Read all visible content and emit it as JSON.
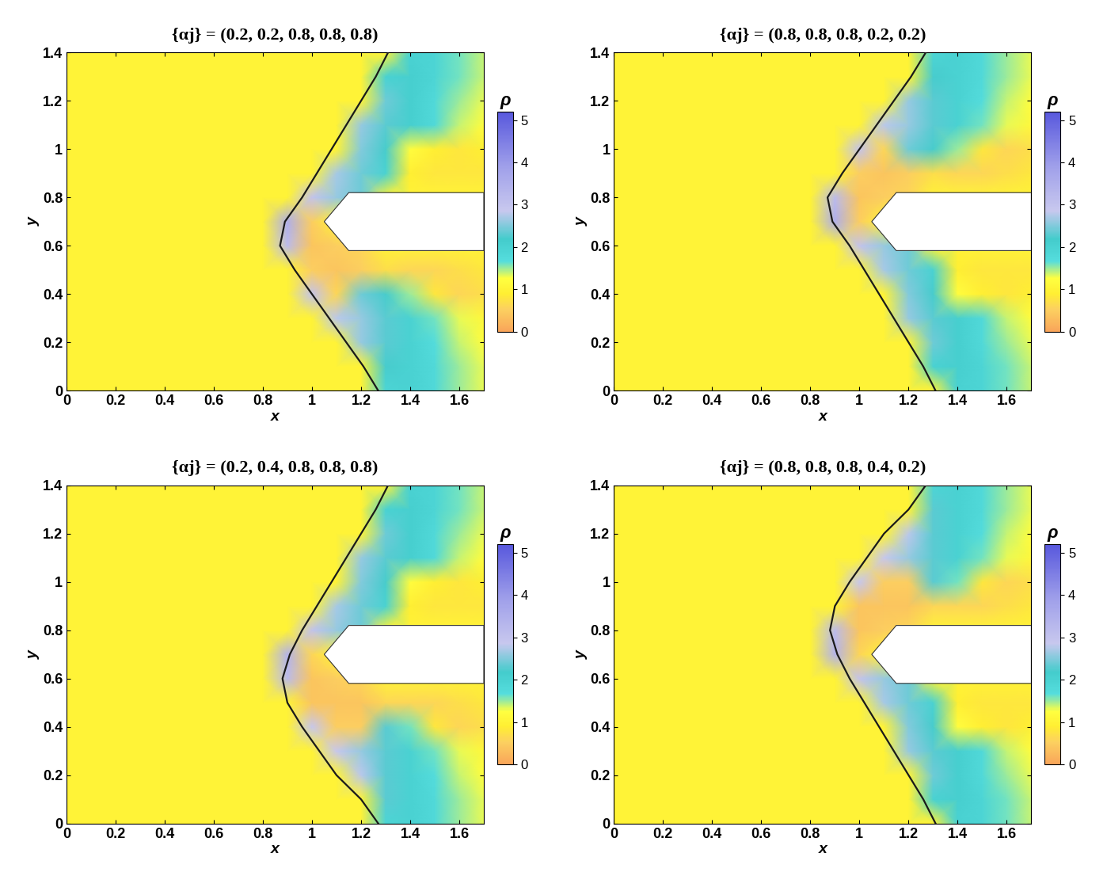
{
  "chart_data": [
    {
      "type": "heatmap",
      "title": "{αj} = (0.2, 0.2, 0.8, 0.8, 0.8)",
      "x_label": "x",
      "y_label": "y",
      "xlim": [
        0,
        1.7
      ],
      "ylim": [
        0,
        1.4
      ],
      "xticks": [
        0,
        0.2,
        0.4,
        0.6,
        0.8,
        1,
        1.2,
        1.4,
        1.6
      ],
      "yticks": [
        0,
        0.2,
        0.4,
        0.6,
        0.8,
        1,
        1.2,
        1.4
      ],
      "x": [
        0,
        0.8,
        0.9,
        1.0,
        1.1,
        1.2,
        1.3,
        1.4,
        1.5,
        1.6,
        1.7
      ],
      "y": [
        0,
        0.1,
        0.2,
        0.3,
        0.4,
        0.5,
        0.6,
        0.7,
        0.8,
        0.9,
        1.0,
        1.1,
        1.2,
        1.3,
        1.4
      ],
      "values": [
        [
          1,
          1,
          1,
          1,
          1,
          1,
          1.9,
          2.0,
          1.8,
          1.5,
          1.3
        ],
        [
          1,
          1,
          1,
          1,
          1,
          1,
          2.2,
          2.0,
          1.8,
          1.5,
          1.3
        ],
        [
          1,
          1,
          1,
          1,
          1,
          2.6,
          2.3,
          2.0,
          1.7,
          1.4,
          1.2
        ],
        [
          1,
          1,
          1,
          1,
          2.8,
          2.6,
          2.3,
          2.0,
          1.6,
          1.3,
          1.1
        ],
        [
          1,
          1,
          1,
          3.0,
          0.6,
          2.4,
          2.2,
          1.5,
          0.8,
          0.6,
          0.7
        ],
        [
          1,
          1,
          1,
          0.5,
          0.4,
          0.5,
          0.7,
          0.6,
          0.6,
          0.7,
          0.8
        ],
        [
          1,
          1,
          3.2,
          0.4,
          0.5,
          0.6,
          1,
          1,
          1,
          1,
          1
        ],
        [
          1,
          1,
          3.5,
          0.5,
          1,
          1,
          1,
          1,
          1,
          1,
          1
        ],
        [
          1,
          1,
          1,
          3.0,
          2.6,
          2.4,
          1,
          1,
          1,
          1,
          1
        ],
        [
          1,
          1,
          1,
          1,
          2.7,
          2.4,
          2.0,
          0.9,
          0.8,
          0.8,
          0.8
        ],
        [
          1,
          1,
          1,
          1,
          1,
          2.5,
          2.2,
          1.2,
          0.9,
          0.8,
          0.9
        ],
        [
          1,
          1,
          1,
          1,
          1,
          2.6,
          2.3,
          2.1,
          1.8,
          1.4,
          1.2
        ],
        [
          1,
          1,
          1,
          1,
          1,
          1,
          2.4,
          2.1,
          1.8,
          1.5,
          1.3
        ],
        [
          1,
          1,
          1,
          1,
          1,
          1,
          2.0,
          2.1,
          1.9,
          1.6,
          1.4
        ],
        [
          1,
          1,
          1,
          1,
          1,
          1,
          1,
          2.0,
          1.9,
          1.6,
          1.4
        ]
      ],
      "shock": {
        "x": [
          1.27,
          1.21,
          1.14,
          1.07,
          1.0,
          0.93,
          0.87,
          0.89,
          0.96,
          1.02,
          1.08,
          1.14,
          1.2,
          1.26,
          1.31
        ],
        "y": [
          0,
          0.1,
          0.2,
          0.3,
          0.4,
          0.5,
          0.6,
          0.7,
          0.8,
          0.9,
          1.0,
          1.1,
          1.2,
          1.3,
          1.4
        ]
      },
      "body": [
        [
          1.7,
          0.58
        ],
        [
          1.15,
          0.58
        ],
        [
          1.05,
          0.7
        ],
        [
          1.15,
          0.82
        ],
        [
          1.7,
          0.82
        ]
      ],
      "colorbar": {
        "label": "ρ",
        "range": [
          0,
          5.2
        ],
        "ticks": [
          0,
          1,
          2,
          3,
          4,
          5
        ]
      }
    },
    {
      "type": "heatmap",
      "title": "{αj} = (0.8, 0.8, 0.8, 0.2, 0.2)",
      "x_label": "x",
      "y_label": "y",
      "xlim": [
        0,
        1.7
      ],
      "ylim": [
        0,
        1.4
      ],
      "xticks": [
        0,
        0.2,
        0.4,
        0.6,
        0.8,
        1,
        1.2,
        1.4,
        1.6
      ],
      "yticks": [
        0,
        0.2,
        0.4,
        0.6,
        0.8,
        1,
        1.2,
        1.4
      ],
      "x": [
        0,
        0.8,
        0.9,
        1.0,
        1.1,
        1.2,
        1.3,
        1.4,
        1.5,
        1.6,
        1.7
      ],
      "y": [
        0,
        0.1,
        0.2,
        0.3,
        0.4,
        0.5,
        0.6,
        0.7,
        0.8,
        0.9,
        1.0,
        1.1,
        1.2,
        1.3,
        1.4
      ],
      "values": [
        [
          1,
          1,
          1,
          1,
          1,
          1,
          1,
          2.0,
          1.9,
          1.6,
          1.4
        ],
        [
          1,
          1,
          1,
          1,
          1,
          1,
          2.0,
          2.1,
          1.9,
          1.6,
          1.4
        ],
        [
          1,
          1,
          1,
          1,
          1,
          1,
          2.4,
          2.1,
          1.8,
          1.5,
          1.3
        ],
        [
          1,
          1,
          1,
          1,
          1,
          2.6,
          2.3,
          2.1,
          1.8,
          1.4,
          1.2
        ],
        [
          1,
          1,
          1,
          1,
          1,
          2.5,
          2.2,
          1.2,
          0.9,
          0.8,
          0.9
        ],
        [
          1,
          1,
          1,
          1,
          2.7,
          2.4,
          2.0,
          0.9,
          0.8,
          0.8,
          0.8
        ],
        [
          1,
          1,
          1,
          3.0,
          2.6,
          2.4,
          1,
          1,
          1,
          1,
          1
        ],
        [
          1,
          1,
          3.5,
          0.5,
          1,
          1,
          1,
          1,
          1,
          1,
          1
        ],
        [
          1,
          1,
          3.2,
          0.4,
          0.5,
          0.6,
          1,
          1,
          1,
          1,
          1
        ],
        [
          1,
          1,
          1,
          0.5,
          0.4,
          0.5,
          0.7,
          0.6,
          0.6,
          0.7,
          0.8
        ],
        [
          1,
          1,
          1,
          3.0,
          0.6,
          2.4,
          2.2,
          1.5,
          0.8,
          0.6,
          0.7
        ],
        [
          1,
          1,
          1,
          1,
          2.8,
          2.6,
          2.3,
          2.0,
          1.6,
          1.3,
          1.1
        ],
        [
          1,
          1,
          1,
          1,
          1,
          2.6,
          2.3,
          2.0,
          1.7,
          1.4,
          1.2
        ],
        [
          1,
          1,
          1,
          1,
          1,
          1,
          2.2,
          2.0,
          1.8,
          1.5,
          1.3
        ],
        [
          1,
          1,
          1,
          1,
          1,
          1,
          1.9,
          2.0,
          1.8,
          1.5,
          1.3
        ]
      ],
      "shock": {
        "x": [
          1.31,
          1.26,
          1.2,
          1.14,
          1.08,
          1.02,
          0.96,
          0.89,
          0.87,
          0.93,
          1.0,
          1.07,
          1.14,
          1.21,
          1.27
        ],
        "y": [
          0,
          0.1,
          0.2,
          0.3,
          0.4,
          0.5,
          0.6,
          0.7,
          0.8,
          0.9,
          1.0,
          1.1,
          1.2,
          1.3,
          1.4
        ]
      },
      "body": [
        [
          1.7,
          0.58
        ],
        [
          1.15,
          0.58
        ],
        [
          1.05,
          0.7
        ],
        [
          1.15,
          0.82
        ],
        [
          1.7,
          0.82
        ]
      ],
      "colorbar": {
        "label": "ρ",
        "range": [
          0,
          5.2
        ],
        "ticks": [
          0,
          1,
          2,
          3,
          4,
          5
        ]
      }
    },
    {
      "type": "heatmap",
      "title": "{αj} = (0.2, 0.4, 0.8, 0.8, 0.8)",
      "x_label": "x",
      "y_label": "y",
      "xlim": [
        0,
        1.7
      ],
      "ylim": [
        0,
        1.4
      ],
      "xticks": [
        0,
        0.2,
        0.4,
        0.6,
        0.8,
        1,
        1.2,
        1.4,
        1.6
      ],
      "yticks": [
        0,
        0.2,
        0.4,
        0.6,
        0.8,
        1,
        1.2,
        1.4
      ],
      "x": [
        0,
        0.8,
        0.9,
        1.0,
        1.1,
        1.2,
        1.3,
        1.4,
        1.5,
        1.6,
        1.7
      ],
      "y": [
        0,
        0.1,
        0.2,
        0.3,
        0.4,
        0.5,
        0.6,
        0.7,
        0.8,
        0.9,
        1.0,
        1.1,
        1.2,
        1.3,
        1.4
      ],
      "values": [
        [
          1,
          1,
          1,
          1,
          1,
          1,
          1.9,
          2.0,
          1.8,
          1.5,
          1.3
        ],
        [
          1,
          1,
          1,
          1,
          1,
          1,
          2.3,
          2.0,
          1.8,
          1.5,
          1.3
        ],
        [
          1,
          1,
          1,
          1,
          1,
          2.8,
          2.3,
          2.0,
          1.7,
          1.4,
          1.2
        ],
        [
          1,
          1,
          1,
          1,
          2.9,
          2.6,
          2.3,
          2.0,
          1.6,
          1.3,
          1.1
        ],
        [
          1,
          1,
          1,
          2.9,
          0.5,
          0.5,
          2.3,
          1.6,
          0.8,
          0.6,
          0.7
        ],
        [
          1,
          1,
          1,
          0.4,
          0.4,
          0.4,
          0.6,
          0.6,
          0.6,
          0.7,
          0.8
        ],
        [
          1,
          1,
          3.2,
          0.4,
          0.5,
          0.6,
          1,
          1,
          1,
          1,
          1
        ],
        [
          1,
          1,
          3.4,
          0.6,
          1,
          1,
          1,
          1,
          1,
          1,
          1
        ],
        [
          1,
          1,
          1,
          3.0,
          2.6,
          2.4,
          1,
          1,
          1,
          1,
          1
        ],
        [
          1,
          1,
          1,
          1,
          2.7,
          2.4,
          2.0,
          0.9,
          0.8,
          0.8,
          0.8
        ],
        [
          1,
          1,
          1,
          1,
          1,
          2.5,
          2.2,
          1.2,
          0.9,
          0.8,
          0.9
        ],
        [
          1,
          1,
          1,
          1,
          1,
          2.6,
          2.3,
          2.1,
          1.8,
          1.4,
          1.2
        ],
        [
          1,
          1,
          1,
          1,
          1,
          1,
          2.4,
          2.1,
          1.8,
          1.5,
          1.3
        ],
        [
          1,
          1,
          1,
          1,
          1,
          1,
          2.0,
          2.1,
          1.9,
          1.6,
          1.4
        ],
        [
          1,
          1,
          1,
          1,
          1,
          1,
          1,
          2.0,
          1.9,
          1.6,
          1.4
        ]
      ],
      "shock": {
        "x": [
          1.27,
          1.2,
          1.1,
          1.03,
          0.96,
          0.9,
          0.88,
          0.91,
          0.96,
          1.02,
          1.08,
          1.14,
          1.2,
          1.26,
          1.31
        ],
        "y": [
          0,
          0.1,
          0.2,
          0.3,
          0.4,
          0.5,
          0.6,
          0.7,
          0.8,
          0.9,
          1.0,
          1.1,
          1.2,
          1.3,
          1.4
        ]
      },
      "body": [
        [
          1.7,
          0.58
        ],
        [
          1.15,
          0.58
        ],
        [
          1.05,
          0.7
        ],
        [
          1.15,
          0.82
        ],
        [
          1.7,
          0.82
        ]
      ],
      "colorbar": {
        "label": "ρ",
        "range": [
          0,
          5.2
        ],
        "ticks": [
          0,
          1,
          2,
          3,
          4,
          5
        ]
      }
    },
    {
      "type": "heatmap",
      "title": "{αj} = (0.8, 0.8, 0.8, 0.4, 0.2)",
      "x_label": "x",
      "y_label": "y",
      "xlim": [
        0,
        1.7
      ],
      "ylim": [
        0,
        1.4
      ],
      "xticks": [
        0,
        0.2,
        0.4,
        0.6,
        0.8,
        1,
        1.2,
        1.4,
        1.6
      ],
      "yticks": [
        0,
        0.2,
        0.4,
        0.6,
        0.8,
        1,
        1.2,
        1.4
      ],
      "x": [
        0,
        0.8,
        0.9,
        1.0,
        1.1,
        1.2,
        1.3,
        1.4,
        1.5,
        1.6,
        1.7
      ],
      "y": [
        0,
        0.1,
        0.2,
        0.3,
        0.4,
        0.5,
        0.6,
        0.7,
        0.8,
        0.9,
        1.0,
        1.1,
        1.2,
        1.3,
        1.4
      ],
      "values": [
        [
          1,
          1,
          1,
          1,
          1,
          1,
          1,
          2.0,
          1.9,
          1.6,
          1.4
        ],
        [
          1,
          1,
          1,
          1,
          1,
          1,
          2.0,
          2.1,
          1.9,
          1.6,
          1.4
        ],
        [
          1,
          1,
          1,
          1,
          1,
          1,
          2.4,
          2.1,
          1.8,
          1.5,
          1.3
        ],
        [
          1,
          1,
          1,
          1,
          1,
          2.6,
          2.3,
          2.1,
          1.8,
          1.4,
          1.2
        ],
        [
          1,
          1,
          1,
          1,
          1,
          2.5,
          2.2,
          1.2,
          0.9,
          0.8,
          0.9
        ],
        [
          1,
          1,
          1,
          1,
          2.7,
          2.4,
          2.0,
          0.9,
          0.8,
          0.8,
          0.8
        ],
        [
          1,
          1,
          1,
          3.0,
          2.6,
          2.4,
          1,
          1,
          1,
          1,
          1
        ],
        [
          1,
          1,
          3.4,
          0.6,
          1,
          1,
          1,
          1,
          1,
          1,
          1
        ],
        [
          1,
          1,
          3.2,
          0.4,
          0.5,
          0.6,
          1,
          1,
          1,
          1,
          1
        ],
        [
          1,
          1,
          1,
          0.4,
          0.4,
          0.4,
          0.6,
          0.6,
          0.6,
          0.7,
          0.8
        ],
        [
          1,
          1,
          1,
          2.9,
          0.5,
          0.5,
          2.3,
          1.6,
          0.8,
          0.6,
          0.7
        ],
        [
          1,
          1,
          1,
          1,
          2.9,
          2.6,
          2.3,
          2.0,
          1.6,
          1.3,
          1.1
        ],
        [
          1,
          1,
          1,
          1,
          1,
          2.8,
          2.3,
          2.0,
          1.7,
          1.4,
          1.2
        ],
        [
          1,
          1,
          1,
          1,
          1,
          1,
          2.3,
          2.0,
          1.8,
          1.5,
          1.3
        ],
        [
          1,
          1,
          1,
          1,
          1,
          1,
          1.9,
          2.0,
          1.8,
          1.5,
          1.3
        ]
      ],
      "shock": {
        "x": [
          1.31,
          1.26,
          1.2,
          1.14,
          1.08,
          1.02,
          0.96,
          0.91,
          0.88,
          0.9,
          0.96,
          1.03,
          1.1,
          1.2,
          1.27
        ],
        "y": [
          0,
          0.1,
          0.2,
          0.3,
          0.4,
          0.5,
          0.6,
          0.7,
          0.8,
          0.9,
          1.0,
          1.1,
          1.2,
          1.3,
          1.4
        ]
      },
      "body": [
        [
          1.7,
          0.58
        ],
        [
          1.15,
          0.58
        ],
        [
          1.05,
          0.7
        ],
        [
          1.15,
          0.82
        ],
        [
          1.7,
          0.82
        ]
      ],
      "colorbar": {
        "label": "ρ",
        "range": [
          0,
          5.2
        ],
        "ticks": [
          0,
          1,
          2,
          3,
          4,
          5
        ]
      }
    }
  ]
}
